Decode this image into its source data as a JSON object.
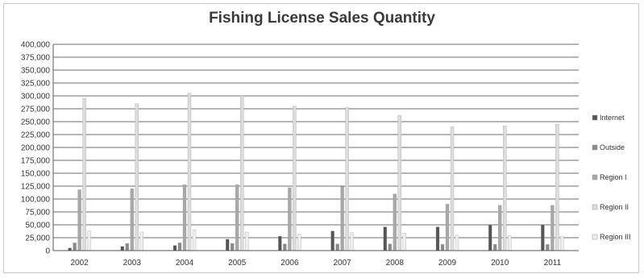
{
  "chart_data": {
    "type": "bar",
    "title": "Fishing License Sales Quantity",
    "xlabel": "",
    "ylabel": "",
    "ylim": [
      0,
      400000
    ],
    "yticks": [
      0,
      25000,
      50000,
      75000,
      100000,
      125000,
      150000,
      175000,
      200000,
      225000,
      250000,
      275000,
      300000,
      325000,
      350000,
      375000,
      400000
    ],
    "ytick_labels": [
      "0",
      "25,000",
      "50,000",
      "75,000",
      "100,000",
      "125,000",
      "150,000",
      "175,000",
      "200,000",
      "225,000",
      "250,000",
      "275,000",
      "300,000",
      "325,000",
      "350,000",
      "375,000",
      "400,000"
    ],
    "grid": true,
    "legend_position": "right",
    "categories": [
      "2002",
      "2003",
      "2004",
      "2005",
      "2006",
      "2007",
      "2008",
      "2009",
      "2010",
      "2011"
    ],
    "series": [
      {
        "name": "Internet",
        "color": "#555555",
        "values": [
          5000,
          8000,
          10000,
          22000,
          28000,
          38000,
          46000,
          46000,
          50000,
          50000
        ]
      },
      {
        "name": "Outside",
        "color": "#8a8a8a",
        "values": [
          15000,
          14000,
          15000,
          14000,
          13000,
          13000,
          13000,
          12000,
          12000,
          12000
        ]
      },
      {
        "name": "Region I",
        "color": "#a8a8a8",
        "values": [
          118000,
          120000,
          128000,
          128000,
          122000,
          124000,
          110000,
          90000,
          88000,
          88000
        ]
      },
      {
        "name": "Region II",
        "color": "#dcdcdc",
        "values": [
          295000,
          285000,
          305000,
          300000,
          280000,
          278000,
          262000,
          240000,
          242000,
          245000
        ]
      },
      {
        "name": "Region III",
        "color": "#eeeeee",
        "values": [
          38000,
          36000,
          40000,
          36000,
          32000,
          35000,
          34000,
          30000,
          29000,
          28000
        ]
      }
    ]
  }
}
